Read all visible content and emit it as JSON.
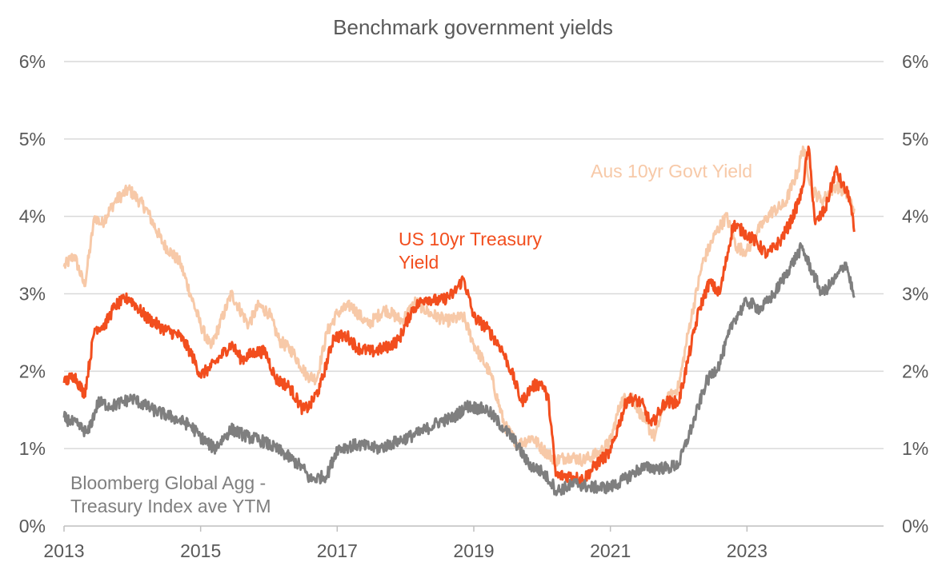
{
  "chart_data": {
    "type": "line",
    "title": "Benchmark government yields",
    "xlabel": "",
    "ylabel": "",
    "xlim": [
      2013.0,
      2025.0
    ],
    "ylim": [
      0,
      6
    ],
    "y_ticks": [
      "0%",
      "1%",
      "2%",
      "3%",
      "4%",
      "5%",
      "6%"
    ],
    "x_ticks": [
      {
        "label": "2013",
        "value": 2013
      },
      {
        "label": "2015",
        "value": 2015
      },
      {
        "label": "2017",
        "value": 2017
      },
      {
        "label": "2019",
        "value": 2019
      },
      {
        "label": "2021",
        "value": 2021
      },
      {
        "label": "2023",
        "value": 2023
      }
    ],
    "gridlines": true,
    "legend": "inline annotations",
    "colors": {
      "us": "#F24E1E",
      "aus": "#F7C9A8",
      "agg": "#7F7F7F",
      "grid": "#D9D9D9",
      "text": "#595959"
    },
    "annotations": {
      "aus": "Aus 10yr Govt Yield",
      "us": [
        "US 10yr Treasury",
        "Yield"
      ],
      "agg": [
        "Bloomberg Global Agg -",
        "Treasury Index ave YTM"
      ]
    },
    "series": [
      {
        "name": "Aus 10yr Govt Yield",
        "key": "aus",
        "x": [
          2013.0,
          2013.15,
          2013.3,
          2013.45,
          2013.55,
          2013.75,
          2013.95,
          2014.2,
          2014.45,
          2014.7,
          2014.85,
          2015.0,
          2015.15,
          2015.45,
          2015.7,
          2015.85,
          2016.0,
          2016.15,
          2016.35,
          2016.55,
          2016.7,
          2016.85,
          2017.0,
          2017.2,
          2017.45,
          2017.7,
          2017.95,
          2018.15,
          2018.35,
          2018.6,
          2018.85,
          2019.0,
          2019.25,
          2019.45,
          2019.65,
          2019.85,
          2020.0,
          2020.2,
          2020.4,
          2020.6,
          2020.85,
          2021.0,
          2021.15,
          2021.3,
          2021.5,
          2021.65,
          2021.8,
          2022.0,
          2022.15,
          2022.35,
          2022.55,
          2022.7,
          2022.85,
          2023.0,
          2023.15,
          2023.35,
          2023.55,
          2023.75,
          2023.82,
          2023.95,
          2024.1,
          2024.3,
          2024.45,
          2024.57
        ],
        "values": [
          3.35,
          3.5,
          3.1,
          4.0,
          3.9,
          4.2,
          4.35,
          4.1,
          3.65,
          3.4,
          3.0,
          2.6,
          2.3,
          3.0,
          2.6,
          2.85,
          2.75,
          2.4,
          2.25,
          1.95,
          1.9,
          2.5,
          2.75,
          2.85,
          2.6,
          2.8,
          2.65,
          2.9,
          2.75,
          2.65,
          2.7,
          2.35,
          1.95,
          1.3,
          1.05,
          1.15,
          1.0,
          0.85,
          0.9,
          0.85,
          0.95,
          1.1,
          1.6,
          1.7,
          1.35,
          1.15,
          1.6,
          1.8,
          2.55,
          3.4,
          3.8,
          4.0,
          3.6,
          3.55,
          3.8,
          4.05,
          4.15,
          4.6,
          4.9,
          4.35,
          4.2,
          4.4,
          4.3,
          4.1
        ]
      },
      {
        "name": "US 10yr Treasury Yield",
        "key": "us",
        "x": [
          2013.0,
          2013.15,
          2013.3,
          2013.45,
          2013.6,
          2013.75,
          2013.95,
          2014.2,
          2014.45,
          2014.7,
          2014.85,
          2015.0,
          2015.15,
          2015.3,
          2015.45,
          2015.6,
          2015.8,
          2015.95,
          2016.1,
          2016.3,
          2016.5,
          2016.6,
          2016.75,
          2016.95,
          2017.15,
          2017.3,
          2017.5,
          2017.7,
          2017.9,
          2018.1,
          2018.3,
          2018.5,
          2018.7,
          2018.85,
          2019.0,
          2019.2,
          2019.4,
          2019.55,
          2019.7,
          2019.85,
          2020.0,
          2020.1,
          2020.2,
          2020.4,
          2020.6,
          2020.85,
          2021.0,
          2021.1,
          2021.25,
          2021.45,
          2021.6,
          2021.8,
          2022.0,
          2022.15,
          2022.3,
          2022.45,
          2022.6,
          2022.8,
          2022.95,
          2023.1,
          2023.3,
          2023.5,
          2023.65,
          2023.8,
          2023.9,
          2024.0,
          2024.15,
          2024.3,
          2024.4,
          2024.5,
          2024.57
        ],
        "values": [
          1.85,
          1.95,
          1.7,
          2.55,
          2.6,
          2.85,
          2.95,
          2.7,
          2.55,
          2.45,
          2.25,
          1.95,
          2.05,
          2.2,
          2.35,
          2.15,
          2.25,
          2.25,
          1.9,
          1.8,
          1.5,
          1.55,
          1.8,
          2.45,
          2.45,
          2.3,
          2.25,
          2.3,
          2.4,
          2.8,
          2.95,
          2.9,
          3.0,
          3.2,
          2.7,
          2.55,
          2.3,
          2.0,
          1.6,
          1.8,
          1.85,
          1.6,
          0.65,
          0.65,
          0.6,
          0.85,
          0.95,
          1.25,
          1.65,
          1.6,
          1.3,
          1.6,
          1.6,
          2.2,
          2.8,
          3.15,
          3.0,
          3.9,
          3.8,
          3.7,
          3.5,
          3.7,
          3.95,
          4.3,
          4.9,
          3.9,
          4.1,
          4.6,
          4.4,
          4.25,
          3.8
        ]
      },
      {
        "name": "Bloomberg Global Agg - Treasury Index ave YTM",
        "key": "agg",
        "x": [
          2013.0,
          2013.2,
          2013.35,
          2013.5,
          2013.7,
          2014.0,
          2014.3,
          2014.6,
          2014.85,
          2015.0,
          2015.2,
          2015.45,
          2015.7,
          2015.9,
          2016.2,
          2016.5,
          2016.6,
          2016.85,
          2017.0,
          2017.3,
          2017.6,
          2017.9,
          2018.2,
          2018.5,
          2018.7,
          2018.9,
          2019.2,
          2019.45,
          2019.6,
          2019.8,
          2020.0,
          2020.15,
          2020.2,
          2020.5,
          2020.7,
          2021.0,
          2021.2,
          2021.45,
          2021.6,
          2021.85,
          2022.0,
          2022.2,
          2022.4,
          2022.6,
          2022.8,
          2023.0,
          2023.2,
          2023.4,
          2023.6,
          2023.8,
          2023.95,
          2024.1,
          2024.3,
          2024.45,
          2024.57
        ],
        "values": [
          1.4,
          1.3,
          1.2,
          1.6,
          1.55,
          1.65,
          1.5,
          1.4,
          1.3,
          1.15,
          1.0,
          1.25,
          1.15,
          1.1,
          0.95,
          0.75,
          0.6,
          0.65,
          1.0,
          1.05,
          1.0,
          1.1,
          1.2,
          1.35,
          1.4,
          1.55,
          1.5,
          1.25,
          1.1,
          0.8,
          0.7,
          0.55,
          0.45,
          0.55,
          0.5,
          0.5,
          0.6,
          0.75,
          0.75,
          0.75,
          0.8,
          1.3,
          1.85,
          2.1,
          2.65,
          2.9,
          2.8,
          3.0,
          3.3,
          3.6,
          3.3,
          3.0,
          3.2,
          3.4,
          2.95
        ]
      }
    ]
  }
}
